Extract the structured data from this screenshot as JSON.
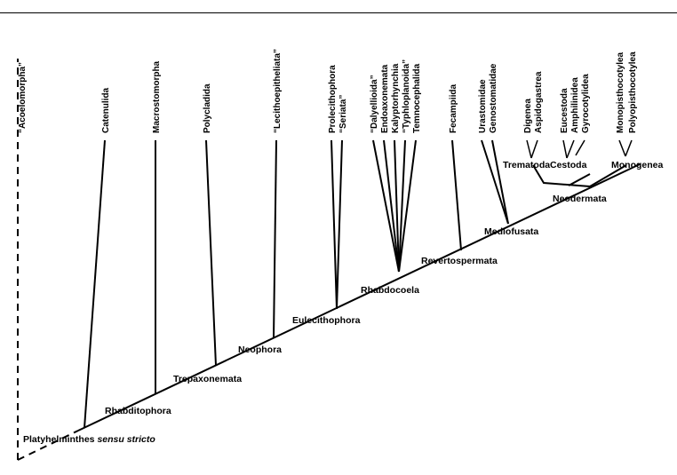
{
  "root": {
    "prefix": "Platyhelminthes ",
    "italic": "sensu stricto"
  },
  "clades": {
    "rhabditophora": "Rhabditophora",
    "trepaxonemata": "Trepaxonemata",
    "neophora": "Neophora",
    "eulecithophora": "Eulecithophora",
    "rhabdocoela": "Rhabdocoela",
    "revertospermata": "Revertospermata",
    "mediofusata": "Mediofusata",
    "neodermata": "Neodermata",
    "trematoda": "Trematoda",
    "cestoda": "Cestoda",
    "monogenea": "Monogenea"
  },
  "taxa": {
    "acoelomorpha": "“Acoelomorpha”",
    "catenulida": "Catenulida",
    "macrostomorpha": "Macrostomorpha",
    "polycladida": "Polycladida",
    "lecithoepitheliata": "“Lecithoepitheliata”",
    "prolecithophora": "Prolecithophora",
    "seriata": "“Seriata”",
    "dalyellioida": "“Dalyellioida”",
    "endoaxonemata": "Endoaxonemata",
    "kalyptorhynchia": "Kalyptorhynchia",
    "typhloplanoida": "“Typhloplanoida”",
    "temnocephalida": "Temnocephalida",
    "fecampiida": "Fecampiida",
    "urastomidae": "Urastomidae",
    "genostomatidae": "Genostomatidae",
    "digenea": "Digenea",
    "aspidogastrea": "Aspidogastrea",
    "eucestoda": "Eucestoda",
    "amphilinidea": "Amphilinidea",
    "gyrocotylidea": "Gyrocotylidea",
    "monopisthocotylea": "Monopisthocotylea",
    "polyopisthocotylea": "Polyopisthocotylea"
  }
}
